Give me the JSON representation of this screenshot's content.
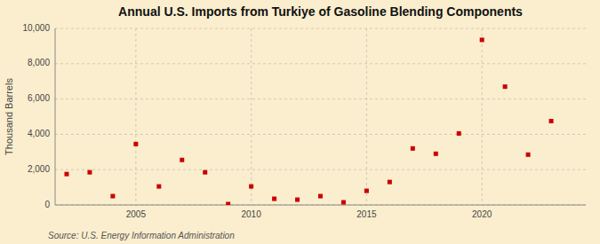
{
  "chart_data": {
    "type": "scatter",
    "title": "Annual U.S. Imports from Turkiye of Gasoline Blending Components",
    "ylabel": "Thousand Barrels",
    "source": "Source: U.S. Energy Information Administration",
    "x": [
      2002,
      2003,
      2004,
      2005,
      2006,
      2007,
      2008,
      2009,
      2010,
      2011,
      2012,
      2013,
      2014,
      2015,
      2016,
      2017,
      2018,
      2019,
      2020,
      2021,
      2022,
      2023
    ],
    "values": [
      1750,
      1850,
      500,
      3450,
      1050,
      2550,
      1850,
      50,
      1050,
      350,
      300,
      500,
      150,
      800,
      1300,
      3200,
      2900,
      4050,
      9350,
      6700,
      2850,
      4750
    ],
    "color": "#cc0000",
    "marker": "square",
    "xlim": [
      2001.5,
      2024.5
    ],
    "xticks": [
      2005,
      2010,
      2015,
      2020
    ],
    "ylim": [
      0,
      10000
    ],
    "yticks": [
      0,
      {
        "value": 2000,
        "label": "2,000"
      },
      {
        "value": 4000,
        "label": "4,000"
      },
      {
        "value": 6000,
        "label": "6,000"
      },
      {
        "value": 8000,
        "label": "8,000"
      },
      {
        "value": 10000,
        "label": "10,000"
      }
    ],
    "grid": true
  }
}
